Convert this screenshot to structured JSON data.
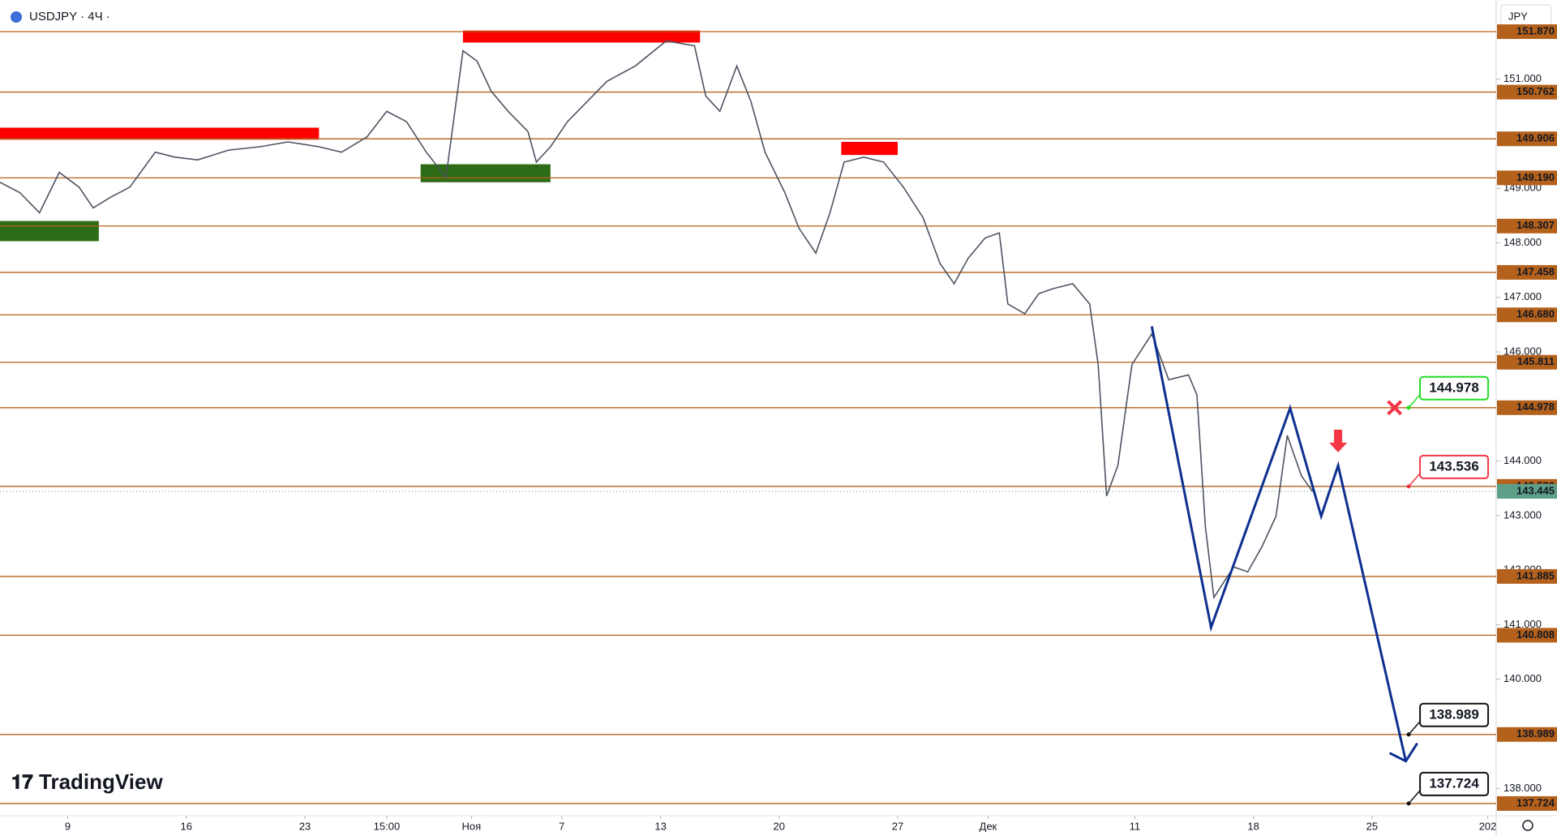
{
  "chart_data": {
    "type": "line",
    "title": "USDJPY · 4Ч ·",
    "currency": "JPY",
    "brand": "TradingView",
    "color": "#4d5360",
    "x": [
      0,
      7,
      14,
      21,
      28,
      33,
      39,
      46,
      55,
      62,
      70,
      81,
      92,
      102,
      113,
      121,
      130,
      137,
      144,
      151,
      158,
      164,
      169,
      174,
      180,
      187,
      190,
      195,
      201,
      208,
      215,
      225,
      236,
      246,
      250,
      255,
      261,
      266,
      271,
      278,
      283,
      289,
      294,
      299,
      306,
      313,
      320,
      327,
      333,
      338,
      343,
      349,
      354,
      357,
      363,
      368,
      373,
      380,
      386,
      389,
      392,
      396,
      401,
      408,
      414,
      421,
      424,
      427,
      430,
      437,
      442,
      447,
      452,
      456,
      461,
      465
    ],
    "values": [
      149.11,
      148.92,
      148.55,
      149.29,
      149.02,
      148.64,
      148.83,
      149.02,
      149.66,
      149.57,
      149.52,
      149.7,
      149.76,
      149.85,
      149.76,
      149.66,
      149.94,
      150.41,
      150.22,
      149.66,
      149.2,
      151.52,
      151.33,
      150.78,
      150.41,
      150.04,
      149.48,
      149.76,
      150.22,
      150.59,
      150.96,
      151.24,
      151.7,
      151.61,
      150.69,
      150.41,
      151.24,
      150.59,
      149.66,
      148.92,
      148.27,
      147.81,
      148.55,
      149.48,
      149.57,
      149.48,
      149.02,
      148.46,
      147.62,
      147.25,
      147.72,
      148.09,
      148.18,
      146.88,
      146.7,
      147.07,
      147.16,
      147.25,
      146.88,
      145.77,
      143.36,
      143.92,
      145.77,
      146.33,
      145.49,
      145.58,
      145.21,
      142.8,
      141.5,
      142.06,
      141.97,
      142.43,
      142.99,
      144.47,
      143.73,
      143.44
    ],
    "xlim": [
      0,
      530
    ],
    "xticks": [
      {
        "value": 24,
        "label": "9"
      },
      {
        "value": 66,
        "label": "16"
      },
      {
        "value": 108,
        "label": "23"
      },
      {
        "value": 137,
        "label": "15:00"
      },
      {
        "value": 167,
        "label": "Ноя"
      },
      {
        "value": 199,
        "label": "7"
      },
      {
        "value": 234,
        "label": "13"
      },
      {
        "value": 276,
        "label": "20"
      },
      {
        "value": 318,
        "label": "27"
      },
      {
        "value": 350,
        "label": "Дек"
      },
      {
        "value": 402,
        "label": "11"
      },
      {
        "value": 444,
        "label": "18"
      },
      {
        "value": 486,
        "label": "25"
      },
      {
        "value": 527,
        "label": "202"
      }
    ],
    "ylim": [
      137.5,
      152.45
    ],
    "yticks": [
      {
        "value": 138,
        "label": "138.000"
      },
      {
        "value": 140,
        "label": "140.000"
      },
      {
        "value": 141,
        "label": "141.000"
      },
      {
        "value": 142,
        "label": "142.000"
      },
      {
        "value": 143,
        "label": "143.000"
      },
      {
        "value": 144,
        "label": "144.000"
      },
      {
        "value": 146,
        "label": "146.000"
      },
      {
        "value": 147,
        "label": "147.000"
      },
      {
        "value": 148,
        "label": "148.000"
      },
      {
        "value": 149,
        "label": "149.000"
      },
      {
        "value": 151,
        "label": "151.000"
      }
    ],
    "level_color": "#b4611c",
    "levels": [
      {
        "value": 151.87,
        "label": "151.870"
      },
      150.762,
      149.906,
      {
        "value": 149.19,
        "label": "149.190"
      },
      148.307,
      147.458,
      {
        "value": 146.68,
        "label": "146.680"
      },
      145.811,
      144.978,
      143.536,
      141.885,
      140.808,
      138.989,
      137.724
    ],
    "last_price": 143.445,
    "last_price_color": "#5e9f8a",
    "zones": [
      {
        "x": [
          0,
          113
        ],
        "y": [
          149.89,
          150.11
        ],
        "color": "#ff0000"
      },
      {
        "x": [
          0,
          35
        ],
        "y": [
          148.03,
          148.4
        ],
        "color": "#2e6b16"
      },
      {
        "x": [
          149,
          195
        ],
        "y": [
          149.11,
          149.44
        ],
        "color": "#2e6b16"
      },
      {
        "x": [
          164,
          248
        ],
        "y": [
          151.67,
          151.89
        ],
        "color": "#ff0000"
      },
      {
        "x": [
          298,
          318
        ],
        "y": [
          149.61,
          149.85
        ],
        "color": "#ff0000"
      }
    ],
    "forecast": {
      "color": "#0d2f8f",
      "x": [
        408,
        429,
        457,
        468,
        474,
        498
      ],
      "values": [
        146.47,
        140.95,
        144.97,
        142.99,
        143.92,
        138.5
      ]
    },
    "callouts": [
      {
        "x": 499,
        "value": 144.978,
        "color": "#22dd22"
      },
      {
        "x": 499,
        "value": 143.536,
        "color": "#f23645"
      },
      {
        "x": 499,
        "value": 138.989,
        "color": "#111111"
      },
      {
        "x": 499,
        "value": 137.724,
        "color": "#111111"
      }
    ],
    "stop_marker": {
      "x": 494,
      "value": 144.978,
      "color": "#f23645"
    },
    "entry_arrow": {
      "x": 474,
      "value": 144.1,
      "color": "#f23645"
    }
  }
}
